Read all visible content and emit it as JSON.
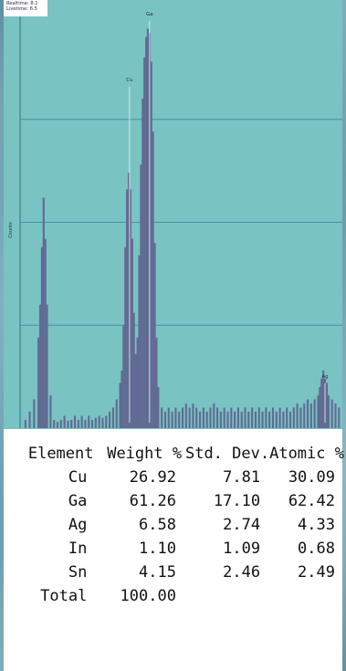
{
  "header": {
    "realtime_label": "Realtime",
    "realtime_value": "8.1",
    "livetime_label": "Livetime",
    "livetime_value": "6.5"
  },
  "colors": {
    "plot_background": "#79c3c3",
    "bars": "#616b93",
    "gridline": "#4c8fa2",
    "axis_text": "#1f2d3a"
  },
  "chart_data": {
    "type": "bar",
    "ylabel": "Counts",
    "xlabel": "",
    "grid": true,
    "legend": "none",
    "peaks": [
      {
        "label": "Ga",
        "x": 148,
        "y": 1.0
      },
      {
        "label": "Cu",
        "x": 125,
        "y": 0.84
      },
      {
        "label": "Ag",
        "x": 350,
        "y": 0.12
      }
    ],
    "spectrum": [
      {
        "x": 5,
        "y": 0.02
      },
      {
        "x": 10,
        "y": 0.04
      },
      {
        "x": 15,
        "y": 0.07
      },
      {
        "x": 20,
        "y": 0.22
      },
      {
        "x": 22,
        "y": 0.3
      },
      {
        "x": 24,
        "y": 0.44
      },
      {
        "x": 26,
        "y": 0.56
      },
      {
        "x": 28,
        "y": 0.46
      },
      {
        "x": 30,
        "y": 0.3
      },
      {
        "x": 34,
        "y": 0.08
      },
      {
        "x": 38,
        "y": 0.02
      },
      {
        "x": 42,
        "y": 0.015
      },
      {
        "x": 46,
        "y": 0.02
      },
      {
        "x": 50,
        "y": 0.03
      },
      {
        "x": 54,
        "y": 0.018
      },
      {
        "x": 58,
        "y": 0.02
      },
      {
        "x": 62,
        "y": 0.03
      },
      {
        "x": 66,
        "y": 0.02
      },
      {
        "x": 70,
        "y": 0.03
      },
      {
        "x": 74,
        "y": 0.02
      },
      {
        "x": 78,
        "y": 0.03
      },
      {
        "x": 82,
        "y": 0.02
      },
      {
        "x": 86,
        "y": 0.025
      },
      {
        "x": 90,
        "y": 0.03
      },
      {
        "x": 94,
        "y": 0.025
      },
      {
        "x": 98,
        "y": 0.03
      },
      {
        "x": 102,
        "y": 0.04
      },
      {
        "x": 106,
        "y": 0.05
      },
      {
        "x": 110,
        "y": 0.07
      },
      {
        "x": 114,
        "y": 0.11
      },
      {
        "x": 116,
        "y": 0.14
      },
      {
        "x": 118,
        "y": 0.25
      },
      {
        "x": 120,
        "y": 0.44
      },
      {
        "x": 122,
        "y": 0.58
      },
      {
        "x": 124,
        "y": 0.62
      },
      {
        "x": 126,
        "y": 0.58
      },
      {
        "x": 128,
        "y": 0.46
      },
      {
        "x": 130,
        "y": 0.28
      },
      {
        "x": 132,
        "y": 0.18
      },
      {
        "x": 134,
        "y": 0.22
      },
      {
        "x": 136,
        "y": 0.42
      },
      {
        "x": 138,
        "y": 0.64
      },
      {
        "x": 140,
        "y": 0.8
      },
      {
        "x": 142,
        "y": 0.9
      },
      {
        "x": 144,
        "y": 0.95
      },
      {
        "x": 146,
        "y": 0.97
      },
      {
        "x": 148,
        "y": 0.96
      },
      {
        "x": 150,
        "y": 0.89
      },
      {
        "x": 152,
        "y": 0.72
      },
      {
        "x": 154,
        "y": 0.45
      },
      {
        "x": 156,
        "y": 0.22
      },
      {
        "x": 158,
        "y": 0.1
      },
      {
        "x": 162,
        "y": 0.05
      },
      {
        "x": 166,
        "y": 0.04
      },
      {
        "x": 170,
        "y": 0.05
      },
      {
        "x": 174,
        "y": 0.04
      },
      {
        "x": 178,
        "y": 0.05
      },
      {
        "x": 182,
        "y": 0.04
      },
      {
        "x": 186,
        "y": 0.05
      },
      {
        "x": 190,
        "y": 0.06
      },
      {
        "x": 194,
        "y": 0.05
      },
      {
        "x": 198,
        "y": 0.06
      },
      {
        "x": 202,
        "y": 0.05
      },
      {
        "x": 206,
        "y": 0.04
      },
      {
        "x": 210,
        "y": 0.05
      },
      {
        "x": 214,
        "y": 0.04
      },
      {
        "x": 218,
        "y": 0.05
      },
      {
        "x": 222,
        "y": 0.06
      },
      {
        "x": 226,
        "y": 0.05
      },
      {
        "x": 230,
        "y": 0.04
      },
      {
        "x": 234,
        "y": 0.05
      },
      {
        "x": 238,
        "y": 0.04
      },
      {
        "x": 242,
        "y": 0.05
      },
      {
        "x": 246,
        "y": 0.04
      },
      {
        "x": 250,
        "y": 0.05
      },
      {
        "x": 254,
        "y": 0.04
      },
      {
        "x": 258,
        "y": 0.05
      },
      {
        "x": 262,
        "y": 0.04
      },
      {
        "x": 266,
        "y": 0.05
      },
      {
        "x": 270,
        "y": 0.04
      },
      {
        "x": 274,
        "y": 0.05
      },
      {
        "x": 278,
        "y": 0.04
      },
      {
        "x": 282,
        "y": 0.05
      },
      {
        "x": 286,
        "y": 0.04
      },
      {
        "x": 290,
        "y": 0.05
      },
      {
        "x": 294,
        "y": 0.04
      },
      {
        "x": 298,
        "y": 0.05
      },
      {
        "x": 302,
        "y": 0.04
      },
      {
        "x": 306,
        "y": 0.05
      },
      {
        "x": 310,
        "y": 0.04
      },
      {
        "x": 314,
        "y": 0.05
      },
      {
        "x": 318,
        "y": 0.06
      },
      {
        "x": 322,
        "y": 0.05
      },
      {
        "x": 326,
        "y": 0.06
      },
      {
        "x": 330,
        "y": 0.07
      },
      {
        "x": 334,
        "y": 0.06
      },
      {
        "x": 338,
        "y": 0.07
      },
      {
        "x": 342,
        "y": 0.08
      },
      {
        "x": 344,
        "y": 0.1
      },
      {
        "x": 346,
        "y": 0.12
      },
      {
        "x": 348,
        "y": 0.14
      },
      {
        "x": 350,
        "y": 0.12
      },
      {
        "x": 352,
        "y": 0.11
      },
      {
        "x": 354,
        "y": 0.08
      },
      {
        "x": 358,
        "y": 0.07
      },
      {
        "x": 362,
        "y": 0.06
      },
      {
        "x": 366,
        "y": 0.05
      }
    ],
    "table": {
      "columns": [
        "Element",
        "Weight %",
        "Std. Dev.",
        "Atomic %"
      ],
      "rows": [
        {
          "element": "Cu",
          "weight": "26.92",
          "std_dev": "7.81",
          "atomic": "30.09"
        },
        {
          "element": "Ga",
          "weight": "61.26",
          "std_dev": "17.10",
          "atomic": "62.42"
        },
        {
          "element": "Ag",
          "weight": "6.58",
          "std_dev": "2.74",
          "atomic": "4.33"
        },
        {
          "element": "In",
          "weight": "1.10",
          "std_dev": "1.09",
          "atomic": "0.68"
        },
        {
          "element": "Sn",
          "weight": "4.15",
          "std_dev": "2.46",
          "atomic": "2.49"
        },
        {
          "element": "Total",
          "weight": "100.00",
          "std_dev": "",
          "atomic": ""
        }
      ]
    }
  }
}
